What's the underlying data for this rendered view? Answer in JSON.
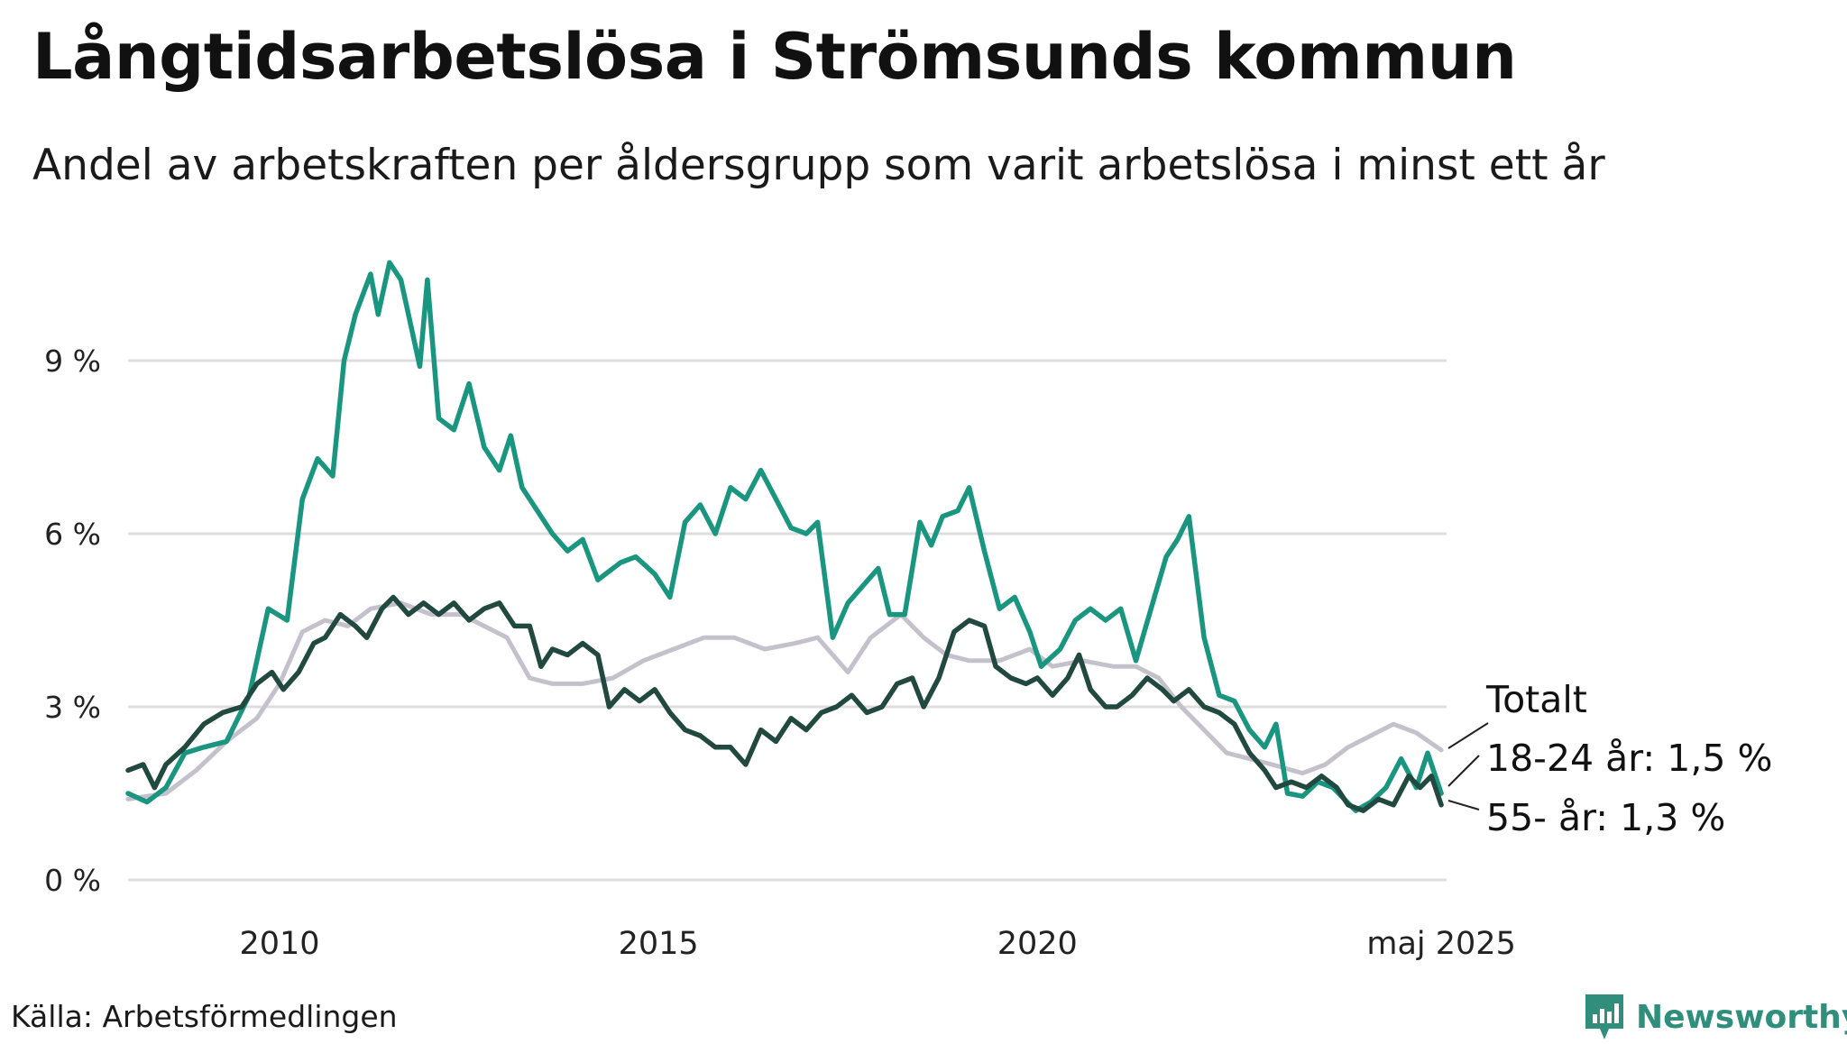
{
  "header": {
    "title": "Långtidsarbetslösa i Strömsunds kommun",
    "subtitle": "Andel av arbetskraften per åldersgrupp som varit arbetslösa i minst ett år"
  },
  "footer": {
    "source": "Källa: Arbetsförmedlingen",
    "brand": "Newsworthy"
  },
  "colors": {
    "totalt": "#c5c1cc",
    "youth": "#1a9680",
    "older": "#22493f",
    "grid": "#dddddd",
    "brand": "#2f8f7c"
  },
  "chart_data": {
    "type": "line",
    "x_ticks": [
      {
        "value": 2010,
        "label": "2010"
      },
      {
        "value": 2015,
        "label": "2015"
      },
      {
        "value": 2020,
        "label": "2020"
      },
      {
        "value": 2025.33,
        "label": "maj 2025"
      }
    ],
    "y_ticks": [
      {
        "value": 0,
        "label": "0 %"
      },
      {
        "value": 3,
        "label": "3 %"
      },
      {
        "value": 6,
        "label": "6 %"
      },
      {
        "value": 9,
        "label": "9 %"
      }
    ],
    "xlim": [
      2008.0,
      2025.4
    ],
    "ylim": [
      0,
      11
    ],
    "grid": true,
    "series": [
      {
        "name": "Totalt",
        "end_label": "Totalt",
        "points": [
          [
            2008.0,
            1.4
          ],
          [
            2008.5,
            1.5
          ],
          [
            2008.9,
            1.9
          ],
          [
            2009.3,
            2.4
          ],
          [
            2009.7,
            2.8
          ],
          [
            2010.0,
            3.4
          ],
          [
            2010.3,
            4.3
          ],
          [
            2010.6,
            4.5
          ],
          [
            2010.9,
            4.4
          ],
          [
            2011.2,
            4.7
          ],
          [
            2011.6,
            4.8
          ],
          [
            2012.0,
            4.6
          ],
          [
            2012.4,
            4.6
          ],
          [
            2012.7,
            4.4
          ],
          [
            2013.0,
            4.2
          ],
          [
            2013.3,
            3.5
          ],
          [
            2013.6,
            3.4
          ],
          [
            2014.0,
            3.4
          ],
          [
            2014.4,
            3.5
          ],
          [
            2014.8,
            3.8
          ],
          [
            2015.2,
            4.0
          ],
          [
            2015.6,
            4.2
          ],
          [
            2016.0,
            4.2
          ],
          [
            2016.4,
            4.0
          ],
          [
            2016.8,
            4.1
          ],
          [
            2017.1,
            4.2
          ],
          [
            2017.5,
            3.6
          ],
          [
            2017.8,
            4.2
          ],
          [
            2018.2,
            4.6
          ],
          [
            2018.5,
            4.2
          ],
          [
            2018.8,
            3.9
          ],
          [
            2019.1,
            3.8
          ],
          [
            2019.5,
            3.8
          ],
          [
            2019.9,
            4.0
          ],
          [
            2020.2,
            3.7
          ],
          [
            2020.6,
            3.8
          ],
          [
            2021.0,
            3.7
          ],
          [
            2021.3,
            3.7
          ],
          [
            2021.6,
            3.5
          ],
          [
            2021.9,
            3.0
          ],
          [
            2022.2,
            2.6
          ],
          [
            2022.5,
            2.2
          ],
          [
            2022.8,
            2.1
          ],
          [
            2023.1,
            2.0
          ],
          [
            2023.5,
            1.85
          ],
          [
            2023.8,
            2.0
          ],
          [
            2024.1,
            2.3
          ],
          [
            2024.4,
            2.5
          ],
          [
            2024.7,
            2.7
          ],
          [
            2025.0,
            2.55
          ],
          [
            2025.33,
            2.25
          ]
        ]
      },
      {
        "name": "18-24 år",
        "end_label": "18-24 år: 1,5 %",
        "end_value": 1.5,
        "points": [
          [
            2008.0,
            1.5
          ],
          [
            2008.25,
            1.35
          ],
          [
            2008.5,
            1.6
          ],
          [
            2008.75,
            2.2
          ],
          [
            2009.0,
            2.3
          ],
          [
            2009.3,
            2.4
          ],
          [
            2009.6,
            3.2
          ],
          [
            2009.85,
            4.7
          ],
          [
            2010.1,
            4.5
          ],
          [
            2010.3,
            6.6
          ],
          [
            2010.5,
            7.3
          ],
          [
            2010.7,
            7.0
          ],
          [
            2010.85,
            9.0
          ],
          [
            2011.0,
            9.8
          ],
          [
            2011.2,
            10.5
          ],
          [
            2011.3,
            9.8
          ],
          [
            2011.45,
            10.7
          ],
          [
            2011.6,
            10.4
          ],
          [
            2011.85,
            8.9
          ],
          [
            2011.95,
            10.4
          ],
          [
            2012.1,
            8.0
          ],
          [
            2012.3,
            7.8
          ],
          [
            2012.5,
            8.6
          ],
          [
            2012.7,
            7.5
          ],
          [
            2012.9,
            7.1
          ],
          [
            2013.05,
            7.7
          ],
          [
            2013.2,
            6.8
          ],
          [
            2013.4,
            6.4
          ],
          [
            2013.6,
            6.0
          ],
          [
            2013.8,
            5.7
          ],
          [
            2014.0,
            5.9
          ],
          [
            2014.2,
            5.2
          ],
          [
            2014.5,
            5.5
          ],
          [
            2014.7,
            5.6
          ],
          [
            2014.95,
            5.3
          ],
          [
            2015.15,
            4.9
          ],
          [
            2015.35,
            6.2
          ],
          [
            2015.55,
            6.5
          ],
          [
            2015.75,
            6.0
          ],
          [
            2015.95,
            6.8
          ],
          [
            2016.15,
            6.6
          ],
          [
            2016.35,
            7.1
          ],
          [
            2016.55,
            6.6
          ],
          [
            2016.75,
            6.1
          ],
          [
            2016.95,
            6.0
          ],
          [
            2017.1,
            6.2
          ],
          [
            2017.3,
            4.2
          ],
          [
            2017.5,
            4.8
          ],
          [
            2017.7,
            5.1
          ],
          [
            2017.9,
            5.4
          ],
          [
            2018.05,
            4.6
          ],
          [
            2018.25,
            4.6
          ],
          [
            2018.45,
            6.2
          ],
          [
            2018.6,
            5.8
          ],
          [
            2018.75,
            6.3
          ],
          [
            2018.95,
            6.4
          ],
          [
            2019.1,
            6.8
          ],
          [
            2019.3,
            5.7
          ],
          [
            2019.5,
            4.7
          ],
          [
            2019.7,
            4.9
          ],
          [
            2019.9,
            4.3
          ],
          [
            2020.05,
            3.7
          ],
          [
            2020.3,
            4.0
          ],
          [
            2020.5,
            4.5
          ],
          [
            2020.7,
            4.7
          ],
          [
            2020.9,
            4.5
          ],
          [
            2021.1,
            4.7
          ],
          [
            2021.3,
            3.8
          ],
          [
            2021.5,
            4.7
          ],
          [
            2021.7,
            5.6
          ],
          [
            2021.85,
            5.9
          ],
          [
            2022.0,
            6.3
          ],
          [
            2022.2,
            4.2
          ],
          [
            2022.4,
            3.2
          ],
          [
            2022.6,
            3.1
          ],
          [
            2022.8,
            2.6
          ],
          [
            2023.0,
            2.3
          ],
          [
            2023.15,
            2.7
          ],
          [
            2023.3,
            1.5
          ],
          [
            2023.5,
            1.45
          ],
          [
            2023.7,
            1.7
          ],
          [
            2023.9,
            1.6
          ],
          [
            2024.05,
            1.4
          ],
          [
            2024.2,
            1.2
          ],
          [
            2024.4,
            1.35
          ],
          [
            2024.6,
            1.6
          ],
          [
            2024.8,
            2.1
          ],
          [
            2025.0,
            1.6
          ],
          [
            2025.15,
            2.2
          ],
          [
            2025.33,
            1.5
          ]
        ]
      },
      {
        "name": "55- år",
        "end_label": "55- år: 1,3 %",
        "end_value": 1.3,
        "points": [
          [
            2008.0,
            1.9
          ],
          [
            2008.2,
            2.0
          ],
          [
            2008.35,
            1.6
          ],
          [
            2008.5,
            2.0
          ],
          [
            2008.75,
            2.3
          ],
          [
            2009.0,
            2.7
          ],
          [
            2009.25,
            2.9
          ],
          [
            2009.5,
            3.0
          ],
          [
            2009.7,
            3.4
          ],
          [
            2009.9,
            3.6
          ],
          [
            2010.05,
            3.3
          ],
          [
            2010.25,
            3.6
          ],
          [
            2010.45,
            4.1
          ],
          [
            2010.6,
            4.2
          ],
          [
            2010.8,
            4.6
          ],
          [
            2011.0,
            4.4
          ],
          [
            2011.15,
            4.2
          ],
          [
            2011.35,
            4.7
          ],
          [
            2011.5,
            4.9
          ],
          [
            2011.7,
            4.6
          ],
          [
            2011.9,
            4.8
          ],
          [
            2012.1,
            4.6
          ],
          [
            2012.3,
            4.8
          ],
          [
            2012.5,
            4.5
          ],
          [
            2012.7,
            4.7
          ],
          [
            2012.9,
            4.8
          ],
          [
            2013.1,
            4.4
          ],
          [
            2013.3,
            4.4
          ],
          [
            2013.45,
            3.7
          ],
          [
            2013.6,
            4.0
          ],
          [
            2013.8,
            3.9
          ],
          [
            2014.0,
            4.1
          ],
          [
            2014.2,
            3.9
          ],
          [
            2014.35,
            3.0
          ],
          [
            2014.55,
            3.3
          ],
          [
            2014.75,
            3.1
          ],
          [
            2014.95,
            3.3
          ],
          [
            2015.15,
            2.9
          ],
          [
            2015.35,
            2.6
          ],
          [
            2015.55,
            2.5
          ],
          [
            2015.75,
            2.3
          ],
          [
            2015.95,
            2.3
          ],
          [
            2016.15,
            2.0
          ],
          [
            2016.35,
            2.6
          ],
          [
            2016.55,
            2.4
          ],
          [
            2016.75,
            2.8
          ],
          [
            2016.95,
            2.6
          ],
          [
            2017.15,
            2.9
          ],
          [
            2017.35,
            3.0
          ],
          [
            2017.55,
            3.2
          ],
          [
            2017.75,
            2.9
          ],
          [
            2017.95,
            3.0
          ],
          [
            2018.15,
            3.4
          ],
          [
            2018.35,
            3.5
          ],
          [
            2018.5,
            3.0
          ],
          [
            2018.7,
            3.5
          ],
          [
            2018.9,
            4.3
          ],
          [
            2019.1,
            4.5
          ],
          [
            2019.3,
            4.4
          ],
          [
            2019.45,
            3.7
          ],
          [
            2019.65,
            3.5
          ],
          [
            2019.85,
            3.4
          ],
          [
            2020.0,
            3.5
          ],
          [
            2020.2,
            3.2
          ],
          [
            2020.4,
            3.5
          ],
          [
            2020.55,
            3.9
          ],
          [
            2020.7,
            3.3
          ],
          [
            2020.9,
            3.0
          ],
          [
            2021.05,
            3.0
          ],
          [
            2021.25,
            3.2
          ],
          [
            2021.45,
            3.5
          ],
          [
            2021.65,
            3.3
          ],
          [
            2021.8,
            3.1
          ],
          [
            2022.0,
            3.3
          ],
          [
            2022.2,
            3.0
          ],
          [
            2022.4,
            2.9
          ],
          [
            2022.6,
            2.7
          ],
          [
            2022.8,
            2.2
          ],
          [
            2023.0,
            1.9
          ],
          [
            2023.15,
            1.6
          ],
          [
            2023.35,
            1.7
          ],
          [
            2023.55,
            1.6
          ],
          [
            2023.75,
            1.8
          ],
          [
            2023.95,
            1.6
          ],
          [
            2024.1,
            1.3
          ],
          [
            2024.3,
            1.2
          ],
          [
            2024.5,
            1.4
          ],
          [
            2024.7,
            1.3
          ],
          [
            2024.9,
            1.8
          ],
          [
            2025.05,
            1.6
          ],
          [
            2025.2,
            1.8
          ],
          [
            2025.33,
            1.3
          ]
        ]
      }
    ]
  }
}
